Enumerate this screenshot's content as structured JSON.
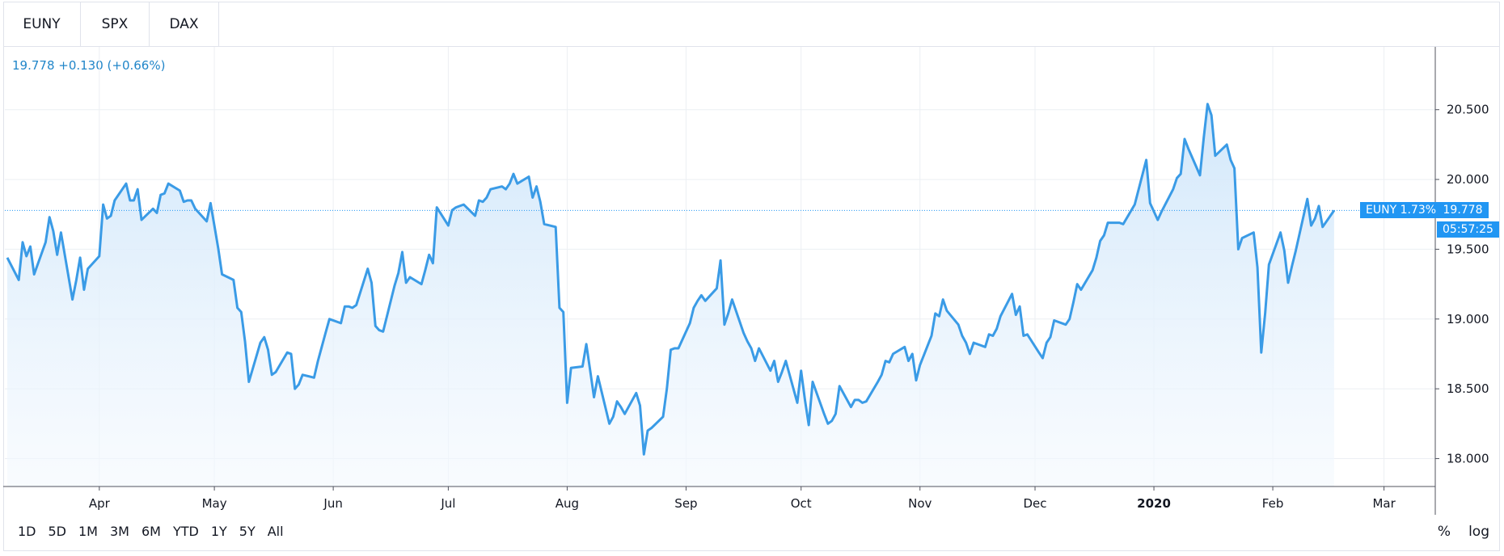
{
  "tabs": [
    {
      "label": "EUNY",
      "active": true
    },
    {
      "label": "SPX",
      "active": false
    },
    {
      "label": "DAX",
      "active": false
    }
  ],
  "quote": {
    "text": "19.778  +0.130 (+0.66%)"
  },
  "colors": {
    "line": "#3a9be6",
    "accent": "#2196f3",
    "fill_top": "#cfe6fa",
    "fill_bottom": "#f4f9fe",
    "grid": "#eceff3"
  },
  "price_label": {
    "symbol_change": "EUNY 1.73%",
    "price": "19.778",
    "countdown": "05:57:25"
  },
  "ranges": [
    "1D",
    "5D",
    "1M",
    "3M",
    "6M",
    "YTD",
    "1Y",
    "5Y",
    "All"
  ],
  "scale_buttons": [
    "%",
    "log"
  ],
  "chart_data": {
    "type": "area",
    "title": "",
    "xlabel": "",
    "ylabel": "",
    "ylim": [
      17.8,
      20.95
    ],
    "y_ticks": [
      18.0,
      18.5,
      19.0,
      19.5,
      20.0,
      20.5
    ],
    "y_tick_labels": [
      "18.000",
      "18.500",
      "19.000",
      "19.500",
      "20.000",
      "20.500"
    ],
    "x_tick_labels": [
      "Apr",
      "May",
      "Jun",
      "Jul",
      "Aug",
      "Sep",
      "Oct",
      "Nov",
      "Dec",
      "2020",
      "Feb",
      "Mar"
    ],
    "x_tick_bold": "2020",
    "x_range": [
      "2019-03-08",
      "2020-03-15"
    ],
    "x_ticks": [
      "2019-04-01",
      "2019-05-01",
      "2019-06-01",
      "2019-07-01",
      "2019-08-01",
      "2019-09-01",
      "2019-10-01",
      "2019-11-01",
      "2019-12-01",
      "2020-01-01",
      "2020-02-01",
      "2020-03-01"
    ],
    "last_value": 19.778,
    "grid": true,
    "series": [
      {
        "values": [
          [
            "2019-03-08",
            19.44
          ],
          [
            "2019-03-11",
            19.28
          ],
          [
            "2019-03-12",
            19.55
          ],
          [
            "2019-03-13",
            19.45
          ],
          [
            "2019-03-14",
            19.52
          ],
          [
            "2019-03-15",
            19.32
          ],
          [
            "2019-03-18",
            19.55
          ],
          [
            "2019-03-19",
            19.73
          ],
          [
            "2019-03-20",
            19.63
          ],
          [
            "2019-03-21",
            19.46
          ],
          [
            "2019-03-22",
            19.62
          ],
          [
            "2019-03-25",
            19.14
          ],
          [
            "2019-03-26",
            19.28
          ],
          [
            "2019-03-27",
            19.44
          ],
          [
            "2019-03-28",
            19.21
          ],
          [
            "2019-03-29",
            19.36
          ],
          [
            "2019-04-01",
            19.45
          ],
          [
            "2019-04-02",
            19.82
          ],
          [
            "2019-04-03",
            19.72
          ],
          [
            "2019-04-04",
            19.74
          ],
          [
            "2019-04-05",
            19.85
          ],
          [
            "2019-04-08",
            19.97
          ],
          [
            "2019-04-09",
            19.85
          ],
          [
            "2019-04-10",
            19.85
          ],
          [
            "2019-04-11",
            19.93
          ],
          [
            "2019-04-12",
            19.71
          ],
          [
            "2019-04-15",
            19.79
          ],
          [
            "2019-04-16",
            19.76
          ],
          [
            "2019-04-17",
            19.89
          ],
          [
            "2019-04-18",
            19.9
          ],
          [
            "2019-04-19",
            19.97
          ],
          [
            "2019-04-22",
            19.92
          ],
          [
            "2019-04-23",
            19.84
          ],
          [
            "2019-04-24",
            19.85
          ],
          [
            "2019-04-25",
            19.85
          ],
          [
            "2019-04-26",
            19.79
          ],
          [
            "2019-04-29",
            19.7
          ],
          [
            "2019-04-30",
            19.83
          ],
          [
            "2019-05-02",
            19.51
          ],
          [
            "2019-05-03",
            19.32
          ],
          [
            "2019-05-06",
            19.28
          ],
          [
            "2019-05-07",
            19.08
          ],
          [
            "2019-05-08",
            19.05
          ],
          [
            "2019-05-09",
            18.84
          ],
          [
            "2019-05-10",
            18.55
          ],
          [
            "2019-05-13",
            18.83
          ],
          [
            "2019-05-14",
            18.87
          ],
          [
            "2019-05-15",
            18.78
          ],
          [
            "2019-05-16",
            18.6
          ],
          [
            "2019-05-17",
            18.62
          ],
          [
            "2019-05-20",
            18.76
          ],
          [
            "2019-05-21",
            18.75
          ],
          [
            "2019-05-22",
            18.5
          ],
          [
            "2019-05-23",
            18.53
          ],
          [
            "2019-05-24",
            18.6
          ],
          [
            "2019-05-27",
            18.58
          ],
          [
            "2019-05-28",
            18.7
          ],
          [
            "2019-05-29",
            18.8
          ],
          [
            "2019-05-30",
            18.9
          ],
          [
            "2019-05-31",
            19.0
          ],
          [
            "2019-06-03",
            18.97
          ],
          [
            "2019-06-04",
            19.09
          ],
          [
            "2019-06-05",
            19.09
          ],
          [
            "2019-06-06",
            19.08
          ],
          [
            "2019-06-07",
            19.1
          ],
          [
            "2019-06-10",
            19.36
          ],
          [
            "2019-06-11",
            19.26
          ],
          [
            "2019-06-12",
            18.95
          ],
          [
            "2019-06-13",
            18.92
          ],
          [
            "2019-06-14",
            18.91
          ],
          [
            "2019-06-17",
            19.24
          ],
          [
            "2019-06-18",
            19.33
          ],
          [
            "2019-06-19",
            19.48
          ],
          [
            "2019-06-20",
            19.26
          ],
          [
            "2019-06-21",
            19.3
          ],
          [
            "2019-06-24",
            19.25
          ],
          [
            "2019-06-25",
            19.35
          ],
          [
            "2019-06-26",
            19.46
          ],
          [
            "2019-06-27",
            19.4
          ],
          [
            "2019-06-28",
            19.8
          ],
          [
            "2019-07-01",
            19.67
          ],
          [
            "2019-07-02",
            19.78
          ],
          [
            "2019-07-03",
            19.8
          ],
          [
            "2019-07-04",
            19.81
          ],
          [
            "2019-07-05",
            19.82
          ],
          [
            "2019-07-08",
            19.74
          ],
          [
            "2019-07-09",
            19.85
          ],
          [
            "2019-07-10",
            19.84
          ],
          [
            "2019-07-11",
            19.87
          ],
          [
            "2019-07-12",
            19.93
          ],
          [
            "2019-07-15",
            19.95
          ],
          [
            "2019-07-16",
            19.93
          ],
          [
            "2019-07-17",
            19.97
          ],
          [
            "2019-07-18",
            20.04
          ],
          [
            "2019-07-19",
            19.97
          ],
          [
            "2019-07-22",
            20.02
          ],
          [
            "2019-07-23",
            19.87
          ],
          [
            "2019-07-24",
            19.95
          ],
          [
            "2019-07-25",
            19.84
          ],
          [
            "2019-07-26",
            19.68
          ],
          [
            "2019-07-29",
            19.66
          ],
          [
            "2019-07-30",
            19.08
          ],
          [
            "2019-07-31",
            19.05
          ],
          [
            "2019-08-01",
            18.4
          ],
          [
            "2019-08-02",
            18.65
          ],
          [
            "2019-08-05",
            18.66
          ],
          [
            "2019-08-06",
            18.82
          ],
          [
            "2019-08-07",
            18.63
          ],
          [
            "2019-08-08",
            18.44
          ],
          [
            "2019-08-09",
            18.59
          ],
          [
            "2019-08-12",
            18.25
          ],
          [
            "2019-08-13",
            18.3
          ],
          [
            "2019-08-14",
            18.41
          ],
          [
            "2019-08-15",
            18.37
          ],
          [
            "2019-08-16",
            18.32
          ],
          [
            "2019-08-19",
            18.47
          ],
          [
            "2019-08-20",
            18.38
          ],
          [
            "2019-08-21",
            18.03
          ],
          [
            "2019-08-22",
            18.2
          ],
          [
            "2019-08-23",
            18.22
          ],
          [
            "2019-08-26",
            18.3
          ],
          [
            "2019-08-27",
            18.5
          ],
          [
            "2019-08-28",
            18.78
          ],
          [
            "2019-08-29",
            18.79
          ],
          [
            "2019-08-30",
            18.79
          ],
          [
            "2019-09-02",
            18.97
          ],
          [
            "2019-09-03",
            19.08
          ],
          [
            "2019-09-04",
            19.13
          ],
          [
            "2019-09-05",
            19.17
          ],
          [
            "2019-09-06",
            19.13
          ],
          [
            "2019-09-09",
            19.22
          ],
          [
            "2019-09-10",
            19.42
          ],
          [
            "2019-09-11",
            18.96
          ],
          [
            "2019-09-12",
            19.04
          ],
          [
            "2019-09-13",
            19.14
          ],
          [
            "2019-09-16",
            18.9
          ],
          [
            "2019-09-17",
            18.84
          ],
          [
            "2019-09-18",
            18.79
          ],
          [
            "2019-09-19",
            18.7
          ],
          [
            "2019-09-20",
            18.79
          ],
          [
            "2019-09-23",
            18.63
          ],
          [
            "2019-09-24",
            18.7
          ],
          [
            "2019-09-25",
            18.55
          ],
          [
            "2019-09-26",
            18.62
          ],
          [
            "2019-09-27",
            18.7
          ],
          [
            "2019-09-30",
            18.4
          ],
          [
            "2019-10-01",
            18.63
          ],
          [
            "2019-10-02",
            18.42
          ],
          [
            "2019-10-03",
            18.24
          ],
          [
            "2019-10-04",
            18.55
          ],
          [
            "2019-10-07",
            18.32
          ],
          [
            "2019-10-08",
            18.25
          ],
          [
            "2019-10-09",
            18.27
          ],
          [
            "2019-10-10",
            18.32
          ],
          [
            "2019-10-11",
            18.52
          ],
          [
            "2019-10-14",
            18.37
          ],
          [
            "2019-10-15",
            18.42
          ],
          [
            "2019-10-16",
            18.42
          ],
          [
            "2019-10-17",
            18.4
          ],
          [
            "2019-10-18",
            18.41
          ],
          [
            "2019-10-21",
            18.55
          ],
          [
            "2019-10-22",
            18.6
          ],
          [
            "2019-10-23",
            18.7
          ],
          [
            "2019-10-24",
            18.69
          ],
          [
            "2019-10-25",
            18.75
          ],
          [
            "2019-10-28",
            18.8
          ],
          [
            "2019-10-29",
            18.7
          ],
          [
            "2019-10-30",
            18.75
          ],
          [
            "2019-10-31",
            18.56
          ],
          [
            "2019-11-01",
            18.67
          ],
          [
            "2019-11-04",
            18.88
          ],
          [
            "2019-11-05",
            19.04
          ],
          [
            "2019-11-06",
            19.02
          ],
          [
            "2019-11-07",
            19.14
          ],
          [
            "2019-11-08",
            19.06
          ],
          [
            "2019-11-11",
            18.96
          ],
          [
            "2019-11-12",
            18.88
          ],
          [
            "2019-11-13",
            18.83
          ],
          [
            "2019-11-14",
            18.75
          ],
          [
            "2019-11-15",
            18.83
          ],
          [
            "2019-11-18",
            18.8
          ],
          [
            "2019-11-19",
            18.89
          ],
          [
            "2019-11-20",
            18.88
          ],
          [
            "2019-11-21",
            18.93
          ],
          [
            "2019-11-22",
            19.02
          ],
          [
            "2019-11-25",
            19.18
          ],
          [
            "2019-11-26",
            19.03
          ],
          [
            "2019-11-27",
            19.09
          ],
          [
            "2019-11-28",
            18.88
          ],
          [
            "2019-11-29",
            18.89
          ],
          [
            "2019-12-02",
            18.76
          ],
          [
            "2019-12-03",
            18.72
          ],
          [
            "2019-12-04",
            18.83
          ],
          [
            "2019-12-05",
            18.87
          ],
          [
            "2019-12-06",
            18.99
          ],
          [
            "2019-12-09",
            18.96
          ],
          [
            "2019-12-10",
            19.0
          ],
          [
            "2019-12-11",
            19.12
          ],
          [
            "2019-12-12",
            19.25
          ],
          [
            "2019-12-13",
            19.21
          ],
          [
            "2019-12-16",
            19.35
          ],
          [
            "2019-12-17",
            19.44
          ],
          [
            "2019-12-18",
            19.56
          ],
          [
            "2019-12-19",
            19.6
          ],
          [
            "2019-12-20",
            19.69
          ],
          [
            "2019-12-23",
            19.69
          ],
          [
            "2019-12-24",
            19.68
          ],
          [
            "2019-12-27",
            19.82
          ],
          [
            "2019-12-30",
            20.14
          ],
          [
            "2019-12-31",
            19.83
          ],
          [
            "2020-01-02",
            19.71
          ],
          [
            "2020-01-03",
            19.77
          ],
          [
            "2020-01-06",
            19.93
          ],
          [
            "2020-01-07",
            20.01
          ],
          [
            "2020-01-08",
            20.04
          ],
          [
            "2020-01-09",
            20.29
          ],
          [
            "2020-01-10",
            20.22
          ],
          [
            "2020-01-13",
            20.03
          ],
          [
            "2020-01-14",
            20.3
          ],
          [
            "2020-01-15",
            20.54
          ],
          [
            "2020-01-16",
            20.46
          ],
          [
            "2020-01-17",
            20.17
          ],
          [
            "2020-01-20",
            20.25
          ],
          [
            "2020-01-21",
            20.14
          ],
          [
            "2020-01-22",
            20.08
          ],
          [
            "2020-01-23",
            19.5
          ],
          [
            "2020-01-24",
            19.58
          ],
          [
            "2020-01-27",
            19.62
          ],
          [
            "2020-01-28",
            19.37
          ],
          [
            "2020-01-29",
            18.76
          ],
          [
            "2020-01-30",
            19.04
          ],
          [
            "2020-01-31",
            19.39
          ],
          [
            "2020-02-03",
            19.62
          ],
          [
            "2020-02-04",
            19.49
          ],
          [
            "2020-02-05",
            19.26
          ],
          [
            "2020-02-06",
            19.38
          ],
          [
            "2020-02-07",
            19.49
          ],
          [
            "2020-02-10",
            19.86
          ],
          [
            "2020-02-11",
            19.67
          ],
          [
            "2020-02-12",
            19.72
          ],
          [
            "2020-02-13",
            19.81
          ],
          [
            "2020-02-14",
            19.66
          ],
          [
            "2020-02-17",
            19.778
          ]
        ]
      }
    ]
  }
}
